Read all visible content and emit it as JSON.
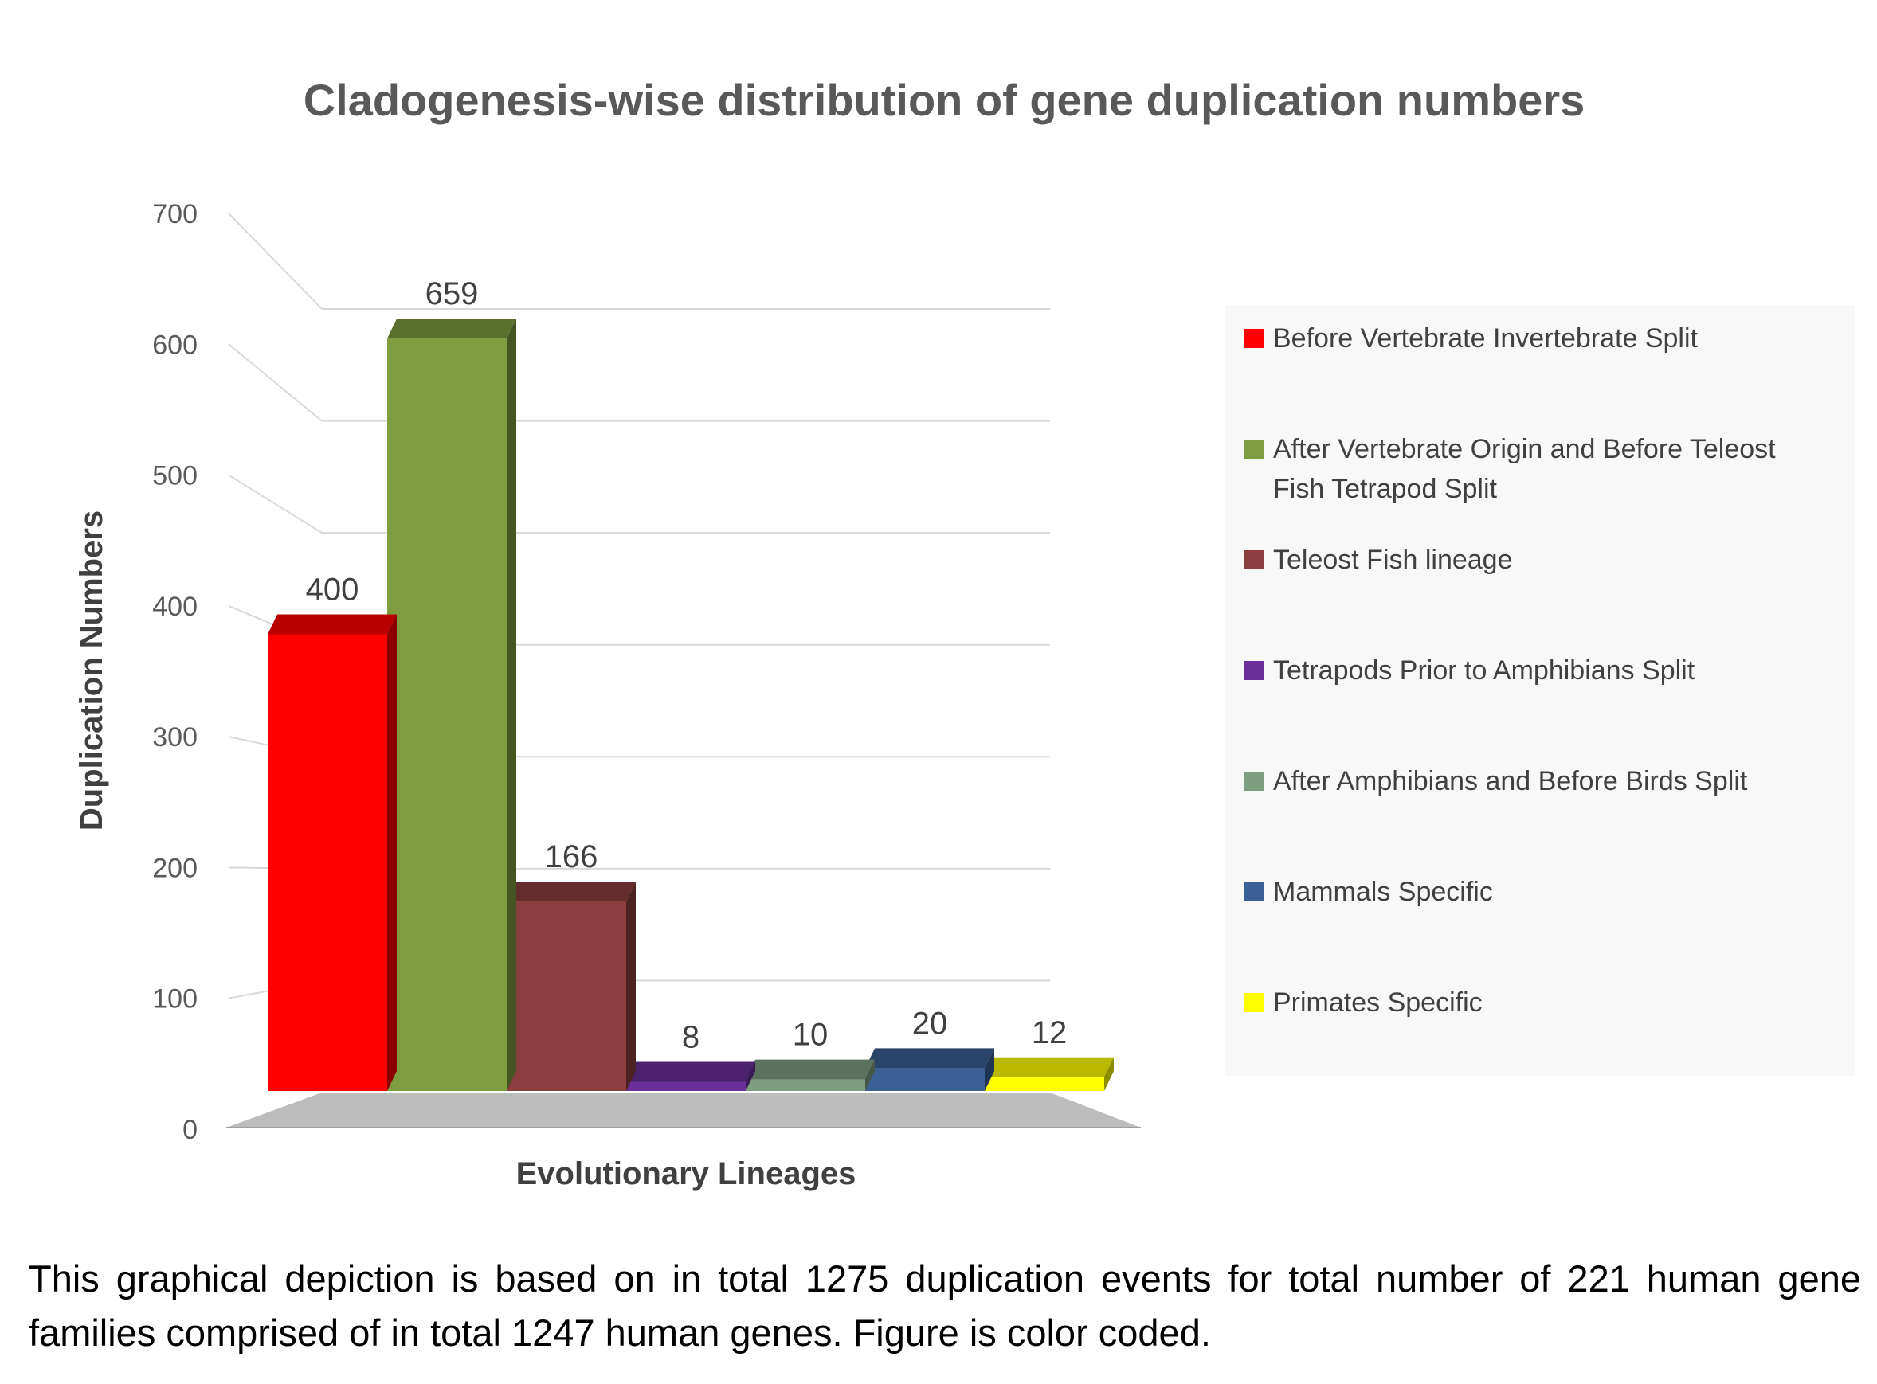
{
  "chart_data": {
    "type": "bar",
    "title": "Cladogenesis-wise distribution of gene duplication numbers",
    "xlabel": "Evolutionary Lineages",
    "ylabel": "Duplication Numbers",
    "ylim": [
      0,
      700
    ],
    "y_ticks": [
      "0",
      "100",
      "200",
      "300",
      "400",
      "500",
      "600",
      "700"
    ],
    "y_tick_values": [
      0,
      100,
      200,
      300,
      400,
      500,
      600,
      700
    ],
    "grid": true,
    "legend_position": "right",
    "categories": [
      "Before Vertebrate Invertebrate Split",
      "After Vertebrate Origin and Before Teleost Fish Tetrapod Split",
      "Teleost Fish lineage",
      "Tetrapods Prior to Amphibians Split",
      "After Amphibians and Before Birds Split",
      "Mammals Specific",
      "Primates Specific"
    ],
    "values": [
      400,
      659,
      166,
      8,
      10,
      20,
      12
    ],
    "value_labels": [
      "400",
      "659",
      "166",
      "8",
      "10",
      "20",
      "12"
    ],
    "colors": [
      "#FF0000",
      "#7F9C3E",
      "#8C3D3D",
      "#6A2F9A",
      "#7E9E82",
      "#3A6096",
      "#FFFF00"
    ],
    "legend": {
      "items": [
        {
          "line1": "Before Vertebrate Invertebrate Split",
          "line2": ""
        },
        {
          "line1": "After Vertebrate Origin and Before Teleost",
          "line2": "Fish Tetrapod Split"
        },
        {
          "line1": "Teleost Fish lineage",
          "line2": ""
        },
        {
          "line1": "Tetrapods Prior to Amphibians Split",
          "line2": ""
        },
        {
          "line1": "After Amphibians and Before Birds Split",
          "line2": ""
        },
        {
          "line1": "Mammals Specific",
          "line2": ""
        },
        {
          "line1": "Primates Specific",
          "line2": ""
        }
      ]
    }
  },
  "caption": "This graphical depiction is based on in total 1275 duplication events for total number of 221 human gene families comprised of in total 1247 human genes. Figure is color coded."
}
